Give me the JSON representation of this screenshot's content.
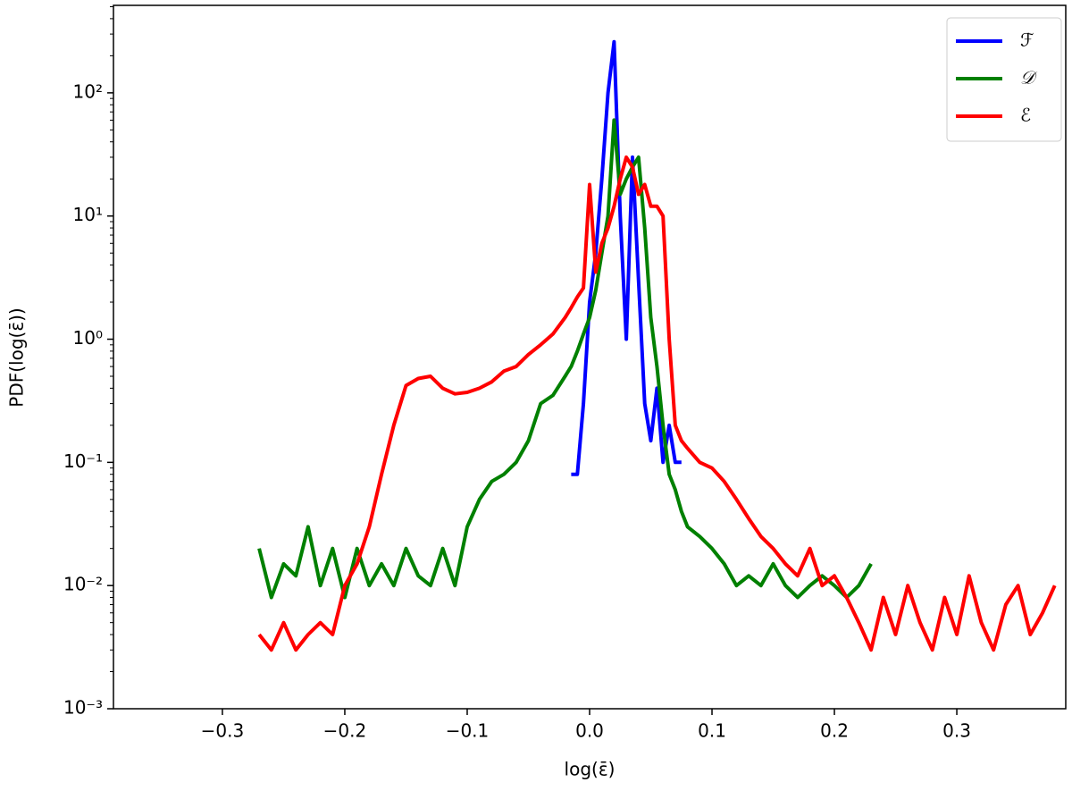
{
  "chart_data": {
    "type": "line",
    "x_label": "log(ε̄)",
    "y_label": "PDF(log(ε̄))",
    "log_y": true,
    "legend": "upper-right",
    "xlim": [
      -0.389,
      0.389
    ],
    "ylim": [
      0.001,
      513
    ],
    "xticks": [
      {
        "value": -0.3,
        "label": "−0.3"
      },
      {
        "value": -0.2,
        "label": "−0.2"
      },
      {
        "value": -0.1,
        "label": "−0.1"
      },
      {
        "value": 0,
        "label": "0.0"
      },
      0.1,
      0.2,
      0.3
    ],
    "yticks": [
      {
        "value": 0.001,
        "label": "10⁻³"
      },
      {
        "value": 0.01,
        "label": "10⁻²"
      },
      {
        "value": 0.1,
        "label": "10⁻¹"
      },
      {
        "value": 1,
        "label": "10⁰"
      },
      {
        "value": 10,
        "label": "10¹"
      },
      {
        "value": 100,
        "label": "10²"
      }
    ],
    "x": [
      -0.27,
      -0.26,
      -0.25,
      -0.24,
      -0.23,
      -0.22,
      -0.21,
      -0.2,
      -0.19,
      -0.18,
      -0.17,
      -0.16,
      -0.15,
      -0.14,
      -0.13,
      -0.12,
      -0.11,
      -0.1,
      -0.09,
      -0.08,
      -0.07,
      -0.06,
      -0.05,
      -0.04,
      -0.03,
      -0.02,
      -0.015,
      -0.01,
      -0.005,
      0,
      0.005,
      0.01,
      0.015,
      0.02,
      0.025,
      0.03,
      0.035,
      0.04,
      0.045,
      0.05,
      0.055,
      0.06,
      0.065,
      0.07,
      0.075,
      0.08,
      0.09,
      0.1,
      0.11,
      0.12,
      0.13,
      0.14,
      0.15,
      0.16,
      0.17,
      0.18,
      0.19,
      0.2,
      0.21,
      0.22,
      0.23,
      0.24,
      0.25,
      0.26,
      0.27,
      0.28,
      0.29,
      0.3,
      0.31,
      0.32,
      0.33,
      0.34,
      0.35,
      0.36,
      0.37,
      0.38
    ],
    "series": [
      {
        "name": "ℱ",
        "color": "#0000ff",
        "values": [
          null,
          null,
          null,
          null,
          null,
          null,
          null,
          null,
          null,
          null,
          null,
          null,
          null,
          null,
          null,
          null,
          null,
          null,
          null,
          null,
          null,
          null,
          null,
          null,
          null,
          null,
          0.08,
          0.08,
          0.3,
          2,
          5,
          20,
          100,
          260,
          10,
          1,
          30,
          3,
          0.3,
          0.15,
          0.4,
          0.1,
          0.2,
          0.1,
          0.1,
          null,
          null,
          null,
          null,
          null,
          null,
          null,
          null,
          null,
          null,
          null,
          null,
          null,
          null,
          null,
          null,
          null,
          null,
          null,
          null,
          null,
          null,
          null,
          null,
          null,
          null,
          null,
          null,
          null,
          null,
          null
        ]
      },
      {
        "name": "𝒟",
        "color": "#008000",
        "values": [
          0.02,
          0.008,
          0.015,
          0.012,
          0.03,
          0.01,
          0.02,
          0.008,
          0.02,
          0.01,
          0.015,
          0.01,
          0.02,
          0.012,
          0.01,
          0.02,
          0.01,
          0.03,
          0.05,
          0.07,
          0.08,
          0.1,
          0.15,
          0.3,
          0.35,
          0.5,
          0.6,
          0.8,
          1.1,
          1.5,
          2.5,
          5,
          10,
          60,
          15,
          20,
          25,
          30,
          8,
          1.5,
          0.6,
          0.2,
          0.08,
          0.06,
          0.04,
          0.03,
          0.025,
          0.02,
          0.015,
          0.01,
          0.012,
          0.01,
          0.015,
          0.01,
          0.008,
          0.01,
          0.012,
          0.01,
          0.008,
          0.01,
          0.015,
          null,
          null,
          null,
          null,
          null,
          null,
          null,
          null,
          null,
          null,
          null,
          null,
          null,
          null,
          null
        ]
      },
      {
        "name": "ℰ",
        "color": "#ff0000",
        "values": [
          0.004,
          0.003,
          0.005,
          0.003,
          0.004,
          0.005,
          0.004,
          0.01,
          0.015,
          0.03,
          0.08,
          0.2,
          0.42,
          0.48,
          0.5,
          0.4,
          0.36,
          0.37,
          0.4,
          0.45,
          0.55,
          0.6,
          0.75,
          0.9,
          1.1,
          1.5,
          1.8,
          2.2,
          2.6,
          18,
          3.5,
          6,
          8,
          12,
          20,
          30,
          25,
          15,
          18,
          12,
          12,
          10,
          1,
          0.2,
          0.15,
          0.13,
          0.1,
          0.09,
          0.07,
          0.05,
          0.035,
          0.025,
          0.02,
          0.015,
          0.012,
          0.02,
          0.01,
          0.012,
          0.008,
          0.005,
          0.003,
          0.008,
          0.004,
          0.01,
          0.005,
          0.003,
          0.008,
          0.004,
          0.012,
          0.005,
          0.003,
          0.007,
          0.01,
          0.004,
          0.006,
          0.01
        ]
      }
    ]
  }
}
